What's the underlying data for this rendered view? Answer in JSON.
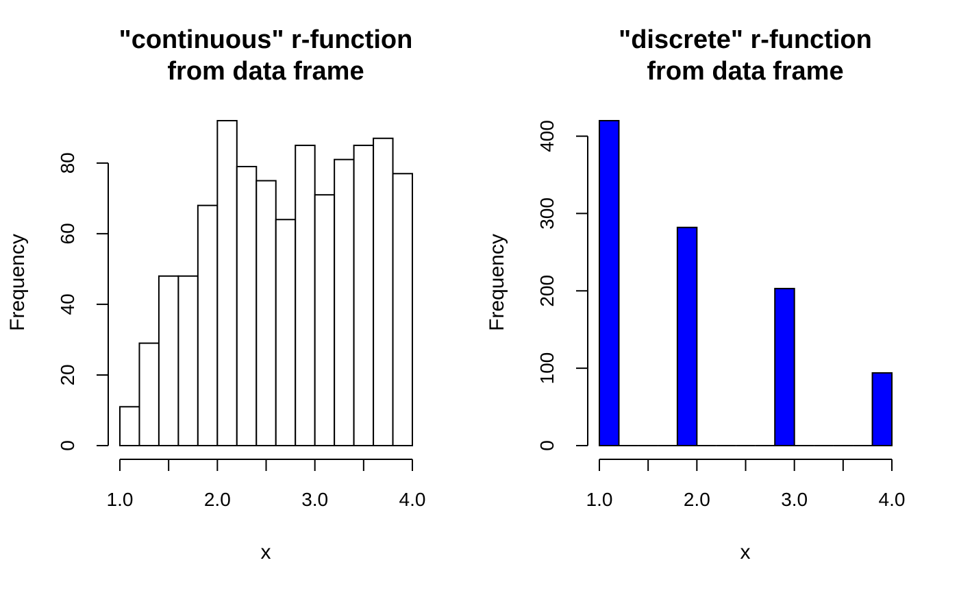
{
  "chart_data": [
    {
      "type": "bar",
      "title_lines": [
        "\"continuous\" r-function",
        "from data frame"
      ],
      "xlabel": "x",
      "ylabel": "Frequency",
      "bar_color": "#ffffff",
      "bins": [
        {
          "start": 1.0,
          "end": 1.2,
          "value": 11
        },
        {
          "start": 1.2,
          "end": 1.4,
          "value": 29
        },
        {
          "start": 1.4,
          "end": 1.6,
          "value": 48
        },
        {
          "start": 1.6,
          "end": 1.8,
          "value": 48
        },
        {
          "start": 1.8,
          "end": 2.0,
          "value": 68
        },
        {
          "start": 2.0,
          "end": 2.2,
          "value": 92
        },
        {
          "start": 2.2,
          "end": 2.4,
          "value": 79
        },
        {
          "start": 2.4,
          "end": 2.6,
          "value": 75
        },
        {
          "start": 2.6,
          "end": 2.8,
          "value": 64
        },
        {
          "start": 2.8,
          "end": 3.0,
          "value": 85
        },
        {
          "start": 3.0,
          "end": 3.2,
          "value": 71
        },
        {
          "start": 3.2,
          "end": 3.4,
          "value": 81
        },
        {
          "start": 3.4,
          "end": 3.6,
          "value": 85
        },
        {
          "start": 3.6,
          "end": 3.8,
          "value": 87
        },
        {
          "start": 3.8,
          "end": 4.0,
          "value": 77
        }
      ],
      "xlim": [
        1.0,
        4.0
      ],
      "ylim": [
        0,
        92
      ],
      "x_ticks": [
        1.0,
        1.5,
        2.0,
        2.5,
        3.0,
        3.5,
        4.0
      ],
      "x_tick_labels": [
        "1.0",
        "",
        "2.0",
        "",
        "3.0",
        "",
        "4.0"
      ],
      "y_ticks": [
        0,
        20,
        40,
        60,
        80
      ],
      "y_tick_labels": [
        "0",
        "20",
        "40",
        "60",
        "80"
      ],
      "grid": false
    },
    {
      "type": "bar",
      "title_lines": [
        "\"discrete\" r-function",
        "from data frame"
      ],
      "xlabel": "x",
      "ylabel": "Frequency",
      "bar_color": "#0000ff",
      "bins": [
        {
          "start": 1.0,
          "end": 1.2,
          "value": 420
        },
        {
          "start": 1.2,
          "end": 1.4,
          "value": 0
        },
        {
          "start": 1.4,
          "end": 1.6,
          "value": 0
        },
        {
          "start": 1.6,
          "end": 1.8,
          "value": 0
        },
        {
          "start": 1.8,
          "end": 2.0,
          "value": 282
        },
        {
          "start": 2.0,
          "end": 2.2,
          "value": 0
        },
        {
          "start": 2.2,
          "end": 2.4,
          "value": 0
        },
        {
          "start": 2.4,
          "end": 2.6,
          "value": 0
        },
        {
          "start": 2.6,
          "end": 2.8,
          "value": 0
        },
        {
          "start": 2.8,
          "end": 3.0,
          "value": 203
        },
        {
          "start": 3.0,
          "end": 3.2,
          "value": 0
        },
        {
          "start": 3.2,
          "end": 3.4,
          "value": 0
        },
        {
          "start": 3.4,
          "end": 3.6,
          "value": 0
        },
        {
          "start": 3.6,
          "end": 3.8,
          "value": 0
        },
        {
          "start": 3.8,
          "end": 4.0,
          "value": 94
        }
      ],
      "xlim": [
        1.0,
        4.0
      ],
      "ylim": [
        0,
        420
      ],
      "x_ticks": [
        1.0,
        1.5,
        2.0,
        2.5,
        3.0,
        3.5,
        4.0
      ],
      "x_tick_labels": [
        "1.0",
        "",
        "2.0",
        "",
        "3.0",
        "",
        "4.0"
      ],
      "y_ticks": [
        0,
        100,
        200,
        300,
        400
      ],
      "y_tick_labels": [
        "0",
        "100",
        "200",
        "300",
        "400"
      ],
      "grid": false
    }
  ]
}
